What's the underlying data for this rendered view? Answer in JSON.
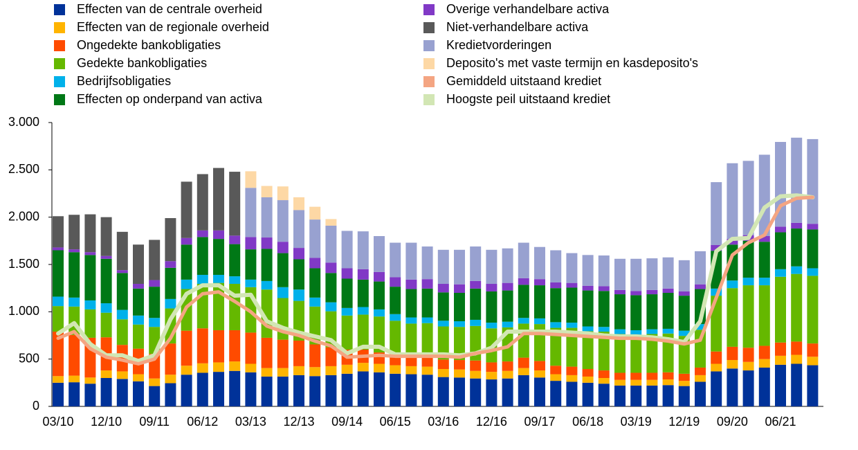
{
  "chart_data": {
    "type": "bar",
    "stacked": true,
    "categories": [
      "03/10",
      null,
      null,
      "12/10",
      null,
      null,
      "09/11",
      null,
      null,
      "06/12",
      null,
      null,
      "03/13",
      null,
      null,
      "12/13",
      null,
      null,
      "09/14",
      null,
      null,
      "06/15",
      null,
      null,
      "03/16",
      null,
      null,
      "12/16",
      null,
      null,
      "09/17",
      null,
      null,
      "06/18",
      null,
      null,
      "03/19",
      null,
      null,
      "12/19",
      null,
      null,
      "09/20",
      null,
      null,
      "06/21",
      null,
      null
    ],
    "ylim": [
      0,
      3000
    ],
    "yticks": [
      0,
      500,
      {
        "value": 1000,
        "label": "1.000"
      },
      {
        "value": 1500,
        "label": "1.500"
      },
      {
        "value": 2000,
        "label": "2.000"
      },
      {
        "value": 2500,
        "label": "2.500"
      },
      {
        "value": 3000,
        "label": "3.000"
      }
    ],
    "series": [
      {
        "name": "Effecten van de centrale overheid",
        "color": "#003299",
        "values": [
          250,
          255,
          240,
          300,
          290,
          265,
          215,
          245,
          335,
          355,
          365,
          375,
          360,
          315,
          315,
          330,
          320,
          330,
          345,
          370,
          360,
          345,
          340,
          335,
          310,
          305,
          295,
          285,
          295,
          330,
          305,
          270,
          260,
          250,
          240,
          220,
          220,
          220,
          225,
          215,
          260,
          370,
          400,
          380,
          410,
          440,
          450,
          435
        ]
      },
      {
        "name": "Effecten van de regionale overheid",
        "color": "#ffb400",
        "values": [
          70,
          70,
          65,
          80,
          80,
          75,
          80,
          90,
          95,
          100,
          100,
          100,
          90,
          90,
          90,
          95,
          95,
          95,
          95,
          90,
          90,
          90,
          85,
          85,
          85,
          85,
          80,
          80,
          80,
          75,
          75,
          70,
          70,
          65,
          60,
          60,
          60,
          60,
          60,
          55,
          70,
          80,
          90,
          90,
          90,
          95,
          95,
          90
        ]
      },
      {
        "name": "Ongedekte bankobligaties",
        "color": "#ff4b00",
        "values": [
          470,
          430,
          420,
          350,
          280,
          270,
          260,
          330,
          370,
          370,
          340,
          330,
          330,
          320,
          300,
          270,
          240,
          200,
          160,
          140,
          120,
          110,
          100,
          100,
          100,
          100,
          110,
          100,
          100,
          110,
          100,
          90,
          90,
          80,
          80,
          75,
          75,
          75,
          75,
          75,
          80,
          130,
          140,
          150,
          140,
          140,
          140,
          140
        ]
      },
      {
        "name": "Gedekte bankobligaties",
        "color": "#65b800",
        "values": [
          270,
          300,
          300,
          260,
          270,
          255,
          285,
          370,
          440,
          470,
          500,
          490,
          480,
          510,
          440,
          420,
          400,
          380,
          360,
          370,
          380,
          360,
          350,
          360,
          350,
          350,
          365,
          360,
          360,
          360,
          390,
          400,
          410,
          400,
          410,
          410,
          400,
          410,
          410,
          400,
          400,
          590,
          620,
          660,
          640,
          695,
          715,
          715
        ]
      },
      {
        "name": "Bedrijfsobligaties",
        "color": "#00b1ea",
        "values": [
          100,
          95,
          95,
          100,
          100,
          95,
          95,
          100,
          100,
          95,
          85,
          80,
          80,
          90,
          115,
          120,
          95,
          95,
          80,
          80,
          75,
          70,
          65,
          60,
          60,
          60,
          65,
          60,
          60,
          60,
          60,
          60,
          55,
          50,
          50,
          50,
          50,
          50,
          50,
          55,
          60,
          75,
          80,
          80,
          80,
          80,
          80,
          80
        ]
      },
      {
        "name": "Effecten op onderpand van activa",
        "color": "#007816",
        "values": [
          490,
          480,
          480,
          470,
          390,
          285,
          330,
          330,
          370,
          400,
          380,
          340,
          320,
          340,
          360,
          320,
          310,
          310,
          310,
          290,
          295,
          290,
          300,
          305,
          300,
          300,
          330,
          330,
          330,
          350,
          350,
          360,
          370,
          380,
          380,
          370,
          370,
          370,
          380,
          370,
          370,
          400,
          380,
          390,
          380,
          390,
          400,
          410
        ]
      },
      {
        "name": "Overige verhandelbare activa",
        "color": "#8139c6",
        "values": [
          30,
          30,
          30,
          30,
          30,
          50,
          70,
          70,
          70,
          70,
          90,
          90,
          130,
          120,
          120,
          120,
          110,
          110,
          110,
          110,
          100,
          100,
          100,
          100,
          90,
          90,
          80,
          80,
          80,
          70,
          65,
          60,
          50,
          50,
          50,
          45,
          45,
          45,
          45,
          45,
          50,
          60,
          60,
          60,
          60,
          60,
          60,
          60
        ]
      },
      {
        "name": "Niet-verhandelbare activa",
        "color": "#595959",
        "values": [
          330,
          365,
          400,
          410,
          405,
          415,
          425,
          455,
          595,
          595,
          660,
          675,
          null,
          null,
          null,
          null,
          null,
          null,
          null,
          null,
          null,
          null,
          null,
          null,
          null,
          null,
          null,
          null,
          null,
          null,
          null,
          null,
          null,
          null,
          null,
          null,
          null,
          null,
          null,
          null,
          null,
          null,
          null,
          null,
          null,
          null,
          null,
          null
        ]
      },
      {
        "name": "Kredietvorderingen",
        "color": "#98a1d0",
        "values": [
          null,
          null,
          null,
          null,
          null,
          null,
          null,
          null,
          null,
          null,
          null,
          null,
          520,
          425,
          440,
          400,
          405,
          390,
          395,
          400,
          380,
          365,
          390,
          345,
          360,
          365,
          365,
          360,
          365,
          375,
          340,
          340,
          315,
          325,
          325,
          330,
          340,
          335,
          330,
          330,
          350,
          665,
          800,
          785,
          860,
          895,
          900,
          895
        ]
      },
      {
        "name": "Deposito's met vaste termijn en kasdeposito's",
        "color": "#fdd8a5",
        "values": [
          null,
          null,
          null,
          null,
          null,
          null,
          null,
          null,
          null,
          null,
          null,
          null,
          175,
          120,
          145,
          135,
          135,
          70,
          null,
          null,
          null,
          null,
          null,
          null,
          null,
          null,
          null,
          null,
          null,
          null,
          null,
          null,
          null,
          null,
          null,
          null,
          null,
          null,
          null,
          null,
          null,
          null,
          null,
          null,
          null,
          null,
          null,
          null
        ]
      },
      {
        "name": "Gemiddeld uitstaand krediet",
        "color": "#f4a582",
        "type": "line",
        "values": [
          720,
          790,
          610,
          520,
          490,
          450,
          500,
          720,
          1050,
          1190,
          1210,
          1110,
          1000,
          850,
          790,
          750,
          690,
          640,
          520,
          530,
          540,
          530,
          530,
          530,
          530,
          520,
          560,
          590,
          630,
          770,
          770,
          760,
          750,
          740,
          730,
          720,
          720,
          710,
          690,
          660,
          700,
          1150,
          1600,
          1730,
          1810,
          2120,
          2200,
          2210
        ]
      },
      {
        "name": "Hoogste peil uitstaand krediet",
        "color": "#d2e6b4",
        "type": "line",
        "values": [
          770,
          880,
          660,
          540,
          540,
          480,
          540,
          920,
          1190,
          1280,
          1280,
          1170,
          1180,
          900,
          830,
          780,
          740,
          700,
          560,
          630,
          630,
          550,
          550,
          550,
          550,
          540,
          560,
          620,
          790,
          790,
          790,
          790,
          780,
          770,
          750,
          740,
          740,
          730,
          710,
          680,
          900,
          1640,
          1770,
          1780,
          2100,
          2220,
          2230,
          2210
        ]
      }
    ]
  }
}
